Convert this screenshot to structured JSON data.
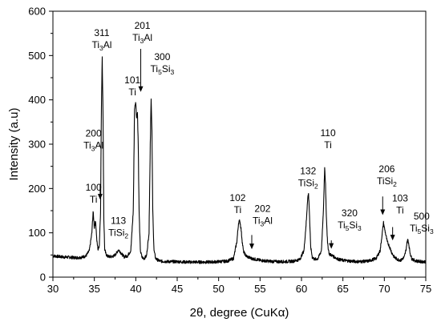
{
  "chart_data": {
    "type": "line",
    "title": "",
    "xlabel": "2θ, degree (CuKα)",
    "ylabel": "Intensity (a.u)",
    "xlim": [
      30,
      75
    ],
    "ylim": [
      0,
      600
    ],
    "xticks": [
      30,
      35,
      40,
      45,
      50,
      55,
      60,
      65,
      70,
      75
    ],
    "yticks": [
      0,
      100,
      200,
      300,
      400,
      500,
      600
    ],
    "grid": false,
    "legend": "none",
    "line_color": "#000000",
    "series": [
      {
        "x": [
          30.0,
          30.5,
          31.0,
          31.5,
          32.0,
          32.5,
          33.0,
          33.5,
          34.0,
          34.4,
          34.7,
          34.85,
          35.0,
          35.15,
          35.3,
          35.45,
          35.6,
          35.75,
          35.85,
          35.95,
          36.05,
          36.15,
          36.25,
          36.4,
          36.6,
          37.0,
          37.4,
          37.7,
          37.9,
          38.1,
          38.3,
          38.6,
          39.0,
          39.4,
          39.7,
          39.85,
          40.0,
          40.1,
          40.2,
          40.3,
          40.4,
          40.55,
          40.75,
          41.0,
          41.3,
          41.6,
          41.75,
          41.85,
          41.95,
          42.05,
          42.2,
          42.4,
          42.7,
          43.0,
          44.0,
          45.0,
          46.0,
          47.0,
          48.0,
          49.0,
          50.0,
          51.0,
          51.8,
          52.2,
          52.4,
          52.55,
          52.7,
          52.85,
          53.0,
          53.3,
          53.6,
          54.0,
          54.5,
          55.0,
          56.0,
          57.0,
          58.0,
          59.0,
          59.8,
          60.3,
          60.6,
          60.75,
          60.85,
          60.95,
          61.1,
          61.3,
          61.6,
          62.0,
          62.4,
          62.65,
          62.8,
          62.9,
          63.0,
          63.15,
          63.35,
          63.6,
          64.0,
          64.5,
          65.0,
          66.0,
          67.0,
          68.0,
          69.0,
          69.5,
          69.75,
          69.9,
          70.0,
          70.15,
          70.35,
          70.6,
          70.9,
          71.2,
          71.6,
          72.0,
          72.4,
          72.6,
          72.75,
          72.85,
          72.95,
          73.1,
          73.3,
          73.6,
          74.0,
          74.5,
          75.0
        ],
        "y": [
          48,
          47,
          46,
          45,
          45,
          44,
          44,
          45,
          48,
          60,
          100,
          148,
          112,
          128,
          82,
          62,
          72,
          150,
          380,
          498,
          360,
          130,
          62,
          52,
          47,
          46,
          48,
          55,
          62,
          58,
          52,
          46,
          48,
          60,
          150,
          380,
          395,
          360,
          370,
          300,
          150,
          60,
          45,
          42,
          48,
          100,
          300,
          405,
          330,
          150,
          60,
          42,
          38,
          36,
          35,
          35,
          34,
          34,
          34,
          34,
          35,
          36,
          42,
          80,
          122,
          128,
          110,
          80,
          58,
          48,
          45,
          42,
          40,
          38,
          36,
          35,
          35,
          36,
          40,
          60,
          130,
          180,
          188,
          150,
          70,
          45,
          40,
          42,
          60,
          150,
          248,
          210,
          140,
          75,
          52,
          50,
          45,
          40,
          38,
          36,
          35,
          36,
          42,
          60,
          100,
          123,
          112,
          98,
          80,
          70,
          55,
          45,
          40,
          38,
          45,
          60,
          80,
          85,
          75,
          55,
          42,
          38,
          36,
          35,
          35
        ]
      }
    ],
    "annotations": [
      {
        "lines": [
          "100",
          "Ti"
        ],
        "x": 34.9,
        "y": 195
      },
      {
        "lines": [
          "200",
          "Ti₃Al"
        ],
        "x": 34.9,
        "y": 317
      },
      {
        "lines": [
          "311",
          "Ti₃Al"
        ],
        "x": 35.9,
        "y": 544
      },
      {
        "lines": [
          "113",
          "TiSi₂"
        ],
        "x": 37.9,
        "y": 120
      },
      {
        "lines": [
          "101",
          "Ti"
        ],
        "x": 39.6,
        "y": 437
      },
      {
        "lines": [
          "201",
          "Ti₃Al"
        ],
        "x": 40.8,
        "y": 560
      },
      {
        "lines": [
          "300",
          "Ti₅Si₃"
        ],
        "x": 43.2,
        "y": 490
      },
      {
        "lines": [
          "102",
          "Ti"
        ],
        "x": 52.3,
        "y": 172
      },
      {
        "lines": [
          "202",
          "Ti₃Al"
        ],
        "x": 55.3,
        "y": 147
      },
      {
        "lines": [
          "132",
          "TiSi₂"
        ],
        "x": 60.8,
        "y": 232
      },
      {
        "lines": [
          "110",
          "Ti"
        ],
        "x": 63.2,
        "y": 318
      },
      {
        "lines": [
          "320",
          "Ti₅Si₃"
        ],
        "x": 65.8,
        "y": 137
      },
      {
        "lines": [
          "206",
          "TiSi₂"
        ],
        "x": 70.3,
        "y": 237
      },
      {
        "lines": [
          "103",
          "Ti"
        ],
        "x": 71.9,
        "y": 171
      },
      {
        "lines": [
          "500",
          "Ti₅Si₃"
        ],
        "x": 74.5,
        "y": 130
      }
    ],
    "arrows": [
      {
        "x": 35.7,
        "y_from": 210,
        "y_to": 175
      },
      {
        "x": 40.6,
        "y_from": 515,
        "y_to": 418
      },
      {
        "x": 54.0,
        "y_from": 95,
        "y_to": 63
      },
      {
        "x": 63.6,
        "y_from": 83,
        "y_to": 64
      },
      {
        "x": 69.8,
        "y_from": 182,
        "y_to": 140
      },
      {
        "x": 71.0,
        "y_from": 113,
        "y_to": 83
      }
    ]
  }
}
